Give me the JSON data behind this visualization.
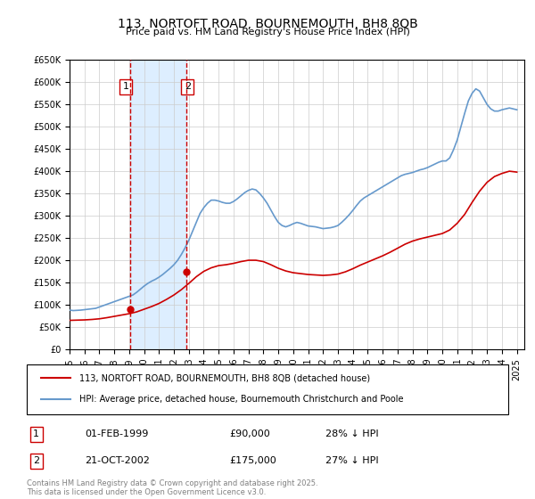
{
  "title": "113, NORTOFT ROAD, BOURNEMOUTH, BH8 8QB",
  "subtitle": "Price paid vs. HM Land Registry's House Price Index (HPI)",
  "ylabel_prefix": "£",
  "ylim": [
    0,
    650000
  ],
  "yticks": [
    0,
    50000,
    100000,
    150000,
    200000,
    250000,
    300000,
    350000,
    400000,
    450000,
    500000,
    550000,
    600000,
    650000
  ],
  "xlim_start": 1995.0,
  "xlim_end": 2025.5,
  "sales": [
    {
      "label": 1,
      "date_num": 1999.083,
      "price": 90000,
      "text": "01-FEB-1999",
      "price_str": "£90,000",
      "pct": "28% ↓ HPI"
    },
    {
      "label": 2,
      "date_num": 2002.806,
      "price": 175000,
      "text": "21-OCT-2002",
      "price_str": "£175,000",
      "pct": "27% ↓ HPI"
    }
  ],
  "shade_color": "#ddeeff",
  "shade_alpha": 0.5,
  "sale_marker_color": "#cc0000",
  "sale_vline_color": "#cc0000",
  "sale_vline_style": "--",
  "hpi_line_color": "#6699cc",
  "property_line_color": "#cc0000",
  "legend_label_property": "113, NORTOFT ROAD, BOURNEMOUTH, BH8 8QB (detached house)",
  "legend_label_hpi": "HPI: Average price, detached house, Bournemouth Christchurch and Poole",
  "footer": "Contains HM Land Registry data © Crown copyright and database right 2025.\nThis data is licensed under the Open Government Licence v3.0.",
  "background_color": "#ffffff",
  "grid_color": "#cccccc",
  "hpi_data_x": [
    1995.0,
    1995.25,
    1995.5,
    1995.75,
    1996.0,
    1996.25,
    1996.5,
    1996.75,
    1997.0,
    1997.25,
    1997.5,
    1997.75,
    1998.0,
    1998.25,
    1998.5,
    1998.75,
    1999.0,
    1999.25,
    1999.5,
    1999.75,
    2000.0,
    2000.25,
    2000.5,
    2000.75,
    2001.0,
    2001.25,
    2001.5,
    2001.75,
    2002.0,
    2002.25,
    2002.5,
    2002.75,
    2003.0,
    2003.25,
    2003.5,
    2003.75,
    2004.0,
    2004.25,
    2004.5,
    2004.75,
    2005.0,
    2005.25,
    2005.5,
    2005.75,
    2006.0,
    2006.25,
    2006.5,
    2006.75,
    2007.0,
    2007.25,
    2007.5,
    2007.75,
    2008.0,
    2008.25,
    2008.5,
    2008.75,
    2009.0,
    2009.25,
    2009.5,
    2009.75,
    2010.0,
    2010.25,
    2010.5,
    2010.75,
    2011.0,
    2011.25,
    2011.5,
    2011.75,
    2012.0,
    2012.25,
    2012.5,
    2012.75,
    2013.0,
    2013.25,
    2013.5,
    2013.75,
    2014.0,
    2014.25,
    2014.5,
    2014.75,
    2015.0,
    2015.25,
    2015.5,
    2015.75,
    2016.0,
    2016.25,
    2016.5,
    2016.75,
    2017.0,
    2017.25,
    2017.5,
    2017.75,
    2018.0,
    2018.25,
    2018.5,
    2018.75,
    2019.0,
    2019.25,
    2019.5,
    2019.75,
    2020.0,
    2020.25,
    2020.5,
    2020.75,
    2021.0,
    2021.25,
    2021.5,
    2021.75,
    2022.0,
    2022.25,
    2022.5,
    2022.75,
    2023.0,
    2023.25,
    2023.5,
    2023.75,
    2024.0,
    2024.25,
    2024.5,
    2024.75,
    2025.0
  ],
  "hpi_data_y": [
    88000,
    87000,
    87500,
    88000,
    89000,
    90000,
    91000,
    92000,
    95000,
    98000,
    101000,
    104000,
    107000,
    110000,
    113000,
    116000,
    119000,
    122000,
    128000,
    135000,
    142000,
    148000,
    153000,
    157000,
    162000,
    168000,
    175000,
    182000,
    190000,
    200000,
    213000,
    228000,
    245000,
    265000,
    285000,
    305000,
    318000,
    328000,
    335000,
    335000,
    333000,
    330000,
    328000,
    328000,
    332000,
    338000,
    345000,
    352000,
    357000,
    360000,
    358000,
    350000,
    340000,
    328000,
    313000,
    298000,
    285000,
    278000,
    275000,
    278000,
    282000,
    285000,
    283000,
    280000,
    277000,
    276000,
    275000,
    273000,
    271000,
    272000,
    273000,
    275000,
    278000,
    285000,
    293000,
    302000,
    312000,
    323000,
    333000,
    340000,
    345000,
    350000,
    355000,
    360000,
    365000,
    370000,
    375000,
    380000,
    385000,
    390000,
    393000,
    395000,
    397000,
    400000,
    403000,
    405000,
    408000,
    412000,
    416000,
    420000,
    423000,
    423000,
    430000,
    448000,
    470000,
    500000,
    530000,
    558000,
    575000,
    585000,
    580000,
    565000,
    550000,
    540000,
    535000,
    535000,
    538000,
    540000,
    542000,
    540000,
    538000
  ],
  "property_data_x": [
    1995.0,
    1995.5,
    1996.0,
    1996.5,
    1997.0,
    1997.5,
    1998.0,
    1998.5,
    1999.0,
    1999.5,
    2000.0,
    2000.5,
    2001.0,
    2001.5,
    2002.0,
    2002.5,
    2003.0,
    2003.5,
    2004.0,
    2004.5,
    2005.0,
    2005.5,
    2006.0,
    2006.5,
    2007.0,
    2007.5,
    2008.0,
    2008.5,
    2009.0,
    2009.5,
    2010.0,
    2010.5,
    2011.0,
    2011.5,
    2012.0,
    2012.5,
    2013.0,
    2013.5,
    2014.0,
    2014.5,
    2015.0,
    2015.5,
    2016.0,
    2016.5,
    2017.0,
    2017.5,
    2018.0,
    2018.5,
    2019.0,
    2019.5,
    2020.0,
    2020.5,
    2021.0,
    2021.5,
    2022.0,
    2022.5,
    2023.0,
    2023.5,
    2024.0,
    2024.5,
    2025.0
  ],
  "property_data_y": [
    65000,
    65500,
    66000,
    67000,
    68500,
    71000,
    74000,
    77000,
    80000,
    84000,
    90000,
    96000,
    103000,
    112000,
    122000,
    134000,
    148000,
    163000,
    175000,
    183000,
    188000,
    190000,
    193000,
    197000,
    200000,
    200000,
    197000,
    190000,
    182000,
    176000,
    172000,
    170000,
    168000,
    167000,
    166000,
    167000,
    169000,
    174000,
    181000,
    189000,
    196000,
    203000,
    210000,
    218000,
    227000,
    236000,
    243000,
    248000,
    252000,
    256000,
    260000,
    268000,
    283000,
    303000,
    330000,
    355000,
    375000,
    388000,
    395000,
    400000,
    398000
  ]
}
